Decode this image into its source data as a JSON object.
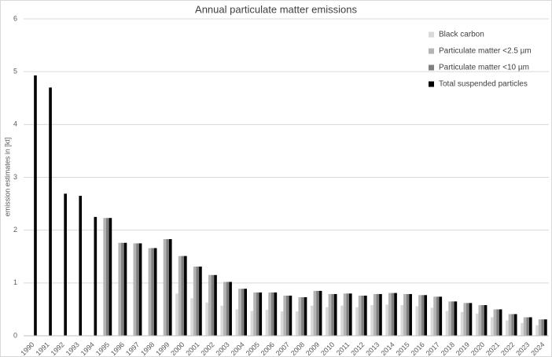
{
  "chart_data": {
    "type": "bar",
    "title": "Annual particulate matter emissions",
    "y_label": "emission estimates in [kt]",
    "categories": [
      "1990",
      "1991",
      "1992",
      "1993",
      "1994",
      "1995",
      "1996",
      "1997",
      "1998",
      "1999",
      "2000",
      "2001",
      "2002",
      "2003",
      "2004",
      "2005",
      "2006",
      "2007",
      "2008",
      "2009",
      "2010",
      "2011",
      "2012",
      "2013",
      "2014",
      "2015",
      "2016",
      "2017",
      "2018",
      "2019",
      "2020",
      "2021",
      "2022",
      "2023",
      "2024"
    ],
    "series": [
      {
        "name": "Black carbon",
        "color": "#d9d9d9",
        "values": [
          null,
          null,
          null,
          null,
          null,
          null,
          null,
          null,
          null,
          null,
          0.8,
          0.71,
          0.63,
          0.57,
          0.5,
          0.47,
          0.49,
          0.46,
          0.46,
          0.57,
          0.54,
          0.57,
          0.54,
          0.58,
          0.59,
          0.58,
          0.56,
          0.53,
          0.47,
          0.45,
          0.42,
          0.35,
          0.29,
          0.24,
          0.2
        ]
      },
      {
        "name": "Particulate matter <2.5 µm",
        "color": "#b4b4b4",
        "values": [
          null,
          null,
          null,
          null,
          null,
          2.23,
          1.76,
          1.75,
          1.66,
          1.83,
          1.51,
          1.31,
          1.15,
          1.02,
          0.89,
          0.82,
          0.82,
          0.76,
          0.73,
          0.85,
          0.79,
          0.8,
          0.76,
          0.79,
          0.81,
          0.79,
          0.77,
          0.74,
          0.65,
          0.62,
          0.58,
          0.5,
          0.41,
          0.35,
          0.31
        ]
      },
      {
        "name": "Particulate matter <10 µm",
        "color": "#7f7f7f",
        "values": [
          null,
          null,
          null,
          null,
          null,
          2.23,
          1.76,
          1.75,
          1.66,
          1.83,
          1.51,
          1.31,
          1.15,
          1.02,
          0.89,
          0.82,
          0.82,
          0.76,
          0.73,
          0.85,
          0.79,
          0.8,
          0.76,
          0.79,
          0.81,
          0.79,
          0.77,
          0.74,
          0.65,
          0.62,
          0.58,
          0.5,
          0.41,
          0.35,
          0.31
        ]
      },
      {
        "name": "Total suspended particles",
        "color": "#000000",
        "values": [
          4.93,
          4.7,
          2.69,
          2.65,
          2.25,
          2.23,
          1.76,
          1.75,
          1.66,
          1.83,
          1.51,
          1.31,
          1.15,
          1.02,
          0.89,
          0.82,
          0.82,
          0.76,
          0.73,
          0.85,
          0.79,
          0.8,
          0.76,
          0.79,
          0.81,
          0.79,
          0.77,
          0.74,
          0.65,
          0.62,
          0.58,
          0.5,
          0.41,
          0.35,
          0.31
        ]
      }
    ],
    "ylim": [
      0,
      6
    ],
    "yticks": [
      0,
      1,
      2,
      3,
      4,
      5,
      6
    ],
    "grid": true,
    "legend": "top-right"
  }
}
